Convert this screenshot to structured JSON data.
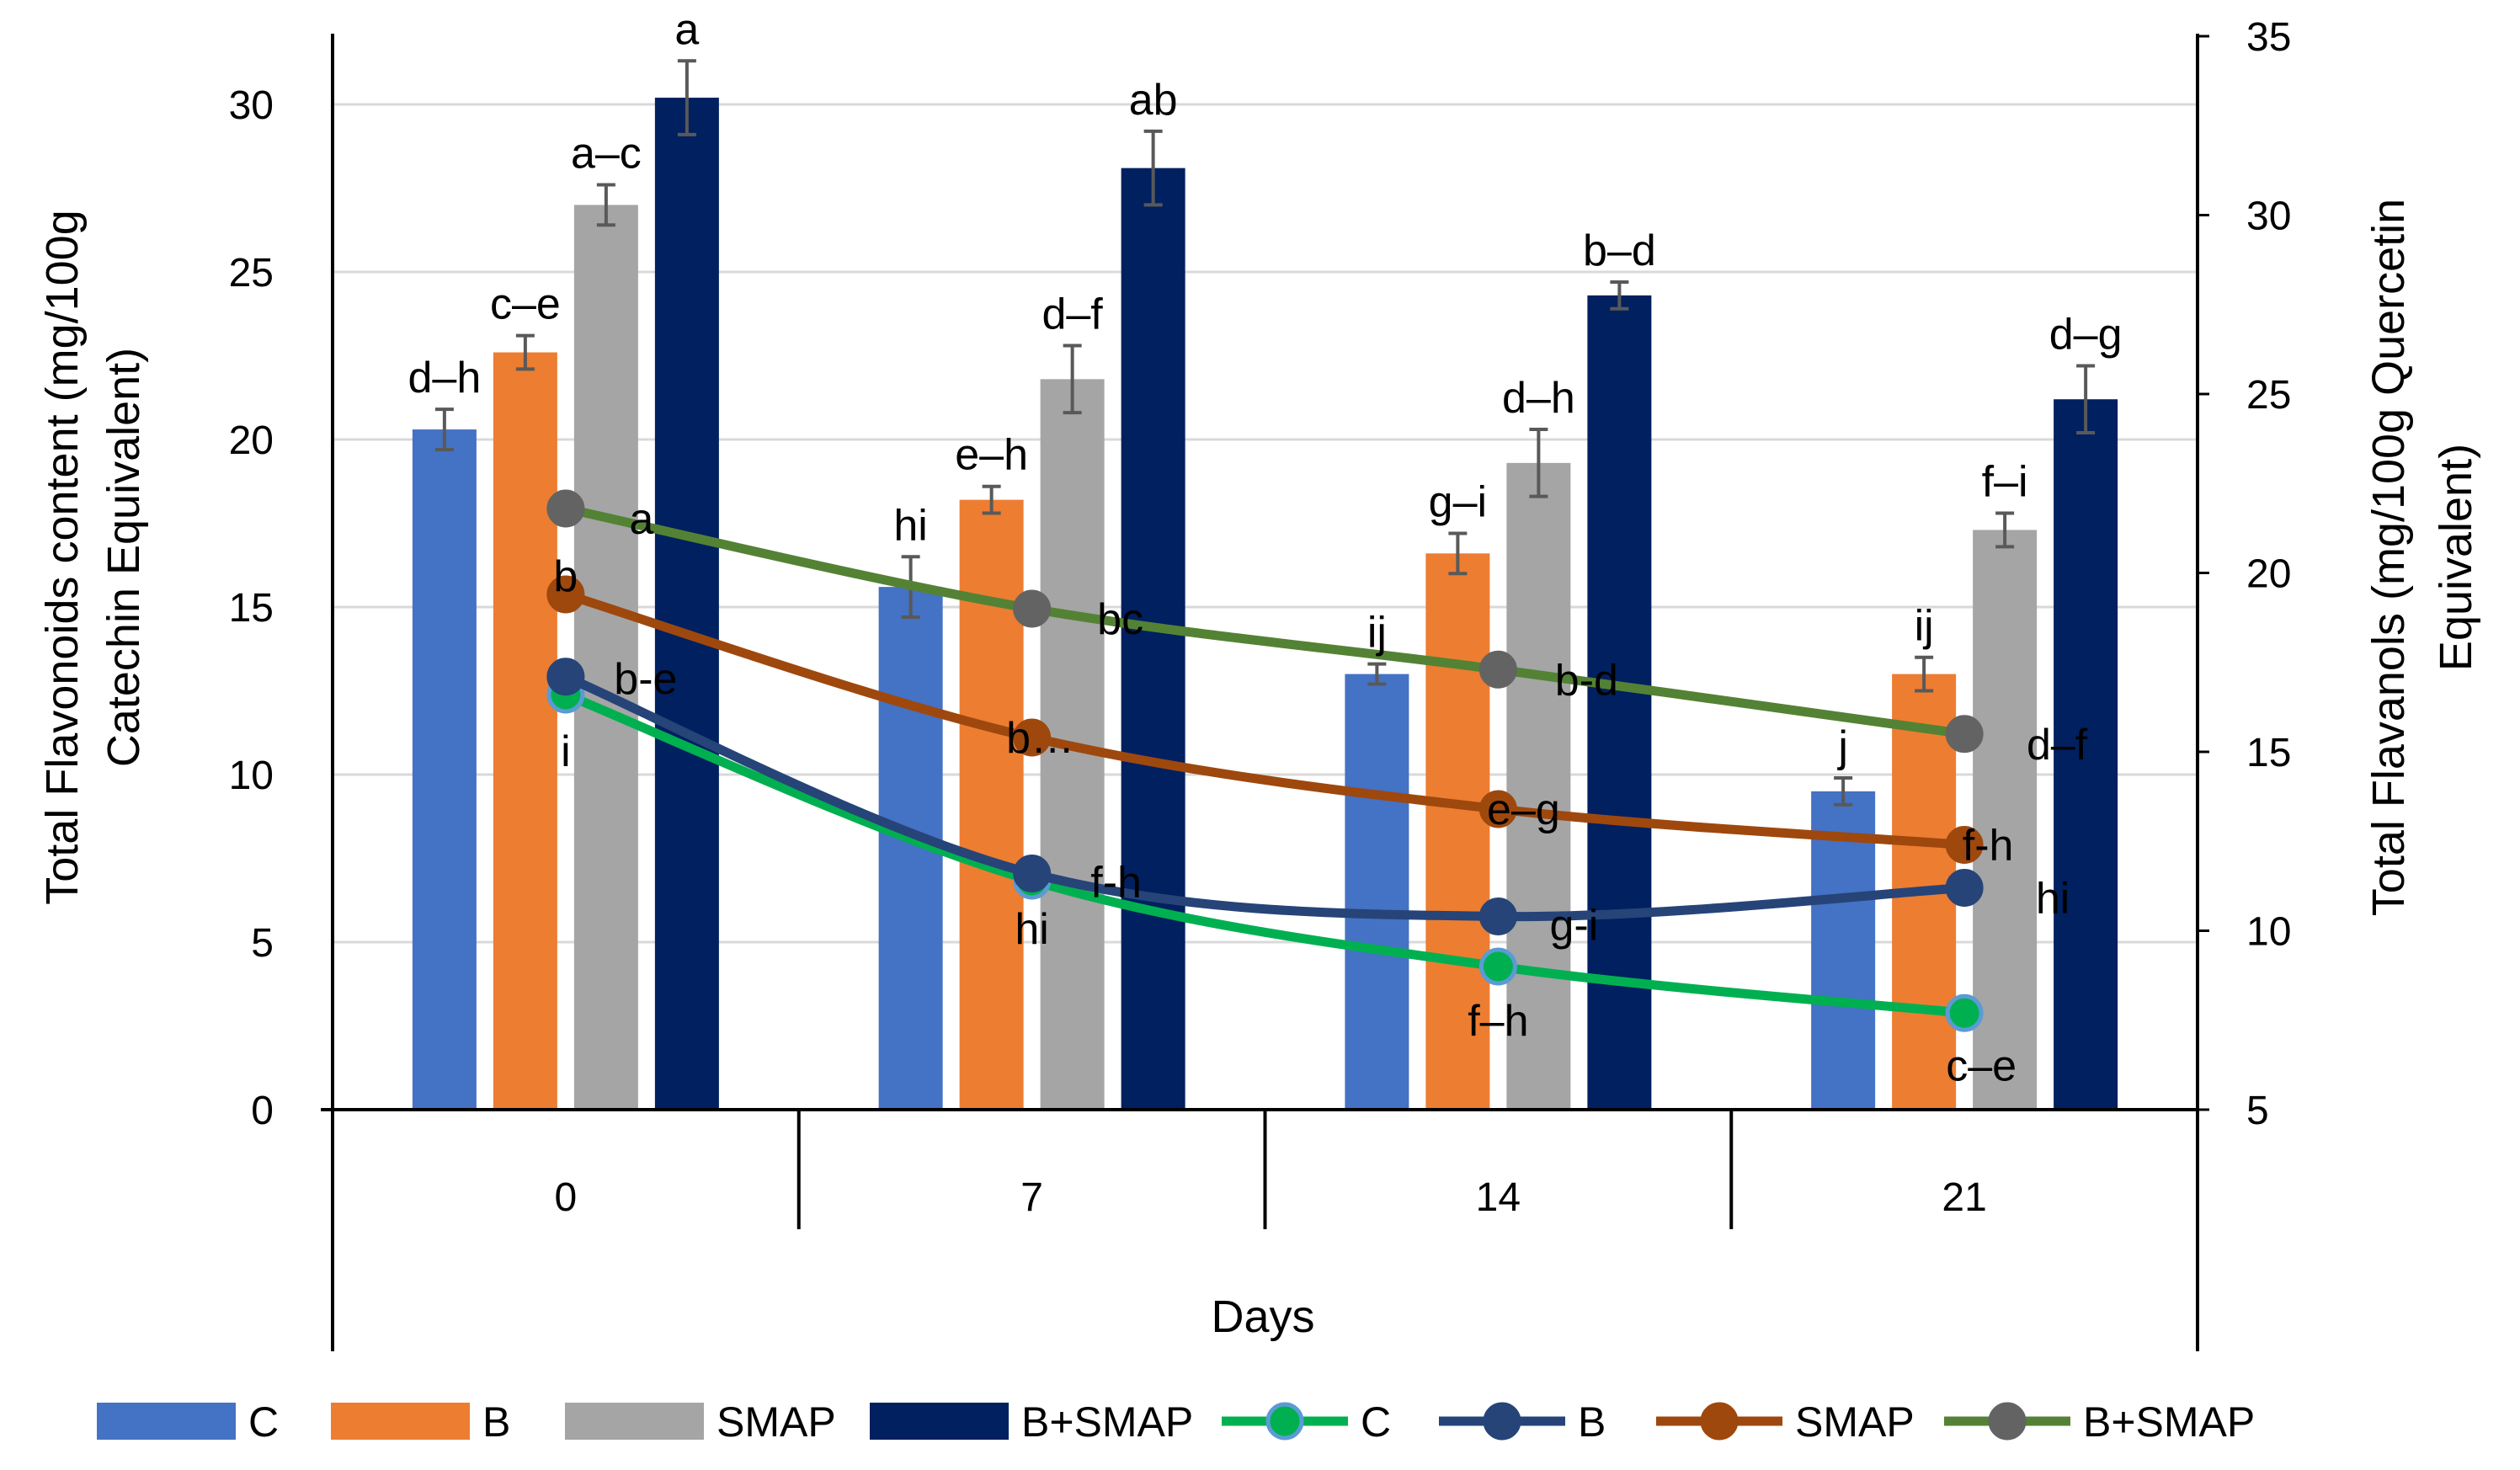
{
  "chart_data": {
    "type": "bar+line (dual axis)",
    "categories": [
      "0",
      "7",
      "14",
      "21"
    ],
    "xlabel": "Days",
    "y_left": {
      "label_lines": [
        "Total Flavonoids content (mg/100g",
        "Catechin Equivalent)"
      ],
      "range": [
        0,
        32
      ],
      "ticks": [
        "0",
        "5",
        "10",
        "15",
        "20",
        "25",
        "30"
      ]
    },
    "y_right": {
      "label_lines": [
        "Total Flavanols (mg/100g Quercetin",
        "Equivalent)"
      ],
      "range": [
        5,
        35
      ],
      "ticks": [
        "5",
        "10",
        "15",
        "20",
        "25",
        "30",
        "35"
      ]
    },
    "bar_series": [
      {
        "name": "C",
        "color": "#4472C4",
        "values": [
          20.3,
          15.6,
          13.0,
          9.5
        ],
        "errors": [
          0.6,
          0.9,
          0.3,
          0.4
        ],
        "letters": [
          "d–h",
          "hi",
          "ij",
          "j"
        ]
      },
      {
        "name": "B",
        "color": "#ED7D31",
        "values": [
          22.6,
          18.2,
          16.6,
          13.0
        ],
        "errors": [
          0.5,
          0.4,
          0.6,
          0.5
        ],
        "letters": [
          "c–e",
          "e–h",
          "g–i",
          "ij"
        ]
      },
      {
        "name": "SMAP",
        "color": "#A5A5A5",
        "values": [
          27.0,
          21.8,
          19.3,
          17.3
        ],
        "errors": [
          0.6,
          1.0,
          1.0,
          0.5
        ],
        "letters": [
          "a–c",
          "d–f",
          "d–h",
          "f–i"
        ]
      },
      {
        "name": "B+SMAP",
        "color": "#002060",
        "values": [
          30.2,
          28.1,
          24.3,
          21.2
        ],
        "errors": [
          1.1,
          1.1,
          0.4,
          1.0
        ],
        "letters": [
          "a",
          "ab",
          "b–d",
          "d–g"
        ]
      }
    ],
    "line_series": [
      {
        "name": "C",
        "color": "#00B050",
        "marker_fill": "#00B050",
        "marker_stroke": "#5B9BD5",
        "values": [
          16.6,
          11.4,
          9.0,
          7.7
        ],
        "letters": [
          "i",
          "hi",
          "f–h",
          "c–e"
        ]
      },
      {
        "name": "B",
        "color": "#264478",
        "marker_fill": "#264478",
        "marker_stroke": "#264478",
        "values": [
          17.1,
          11.6,
          10.4,
          11.2
        ],
        "letters": [
          "b-e",
          "f-h",
          "g-i",
          "hi"
        ]
      },
      {
        "name": "SMAP",
        "color": "#9E480E",
        "marker_fill": "#9E480E",
        "marker_stroke": "#9E480E",
        "values": [
          19.4,
          15.4,
          13.4,
          12.4
        ],
        "letters": [
          "b",
          "b…",
          "e–g",
          "f-h"
        ]
      },
      {
        "name": "B+SMAP",
        "color": "#548235",
        "marker_fill": "#636363",
        "marker_stroke": "#636363",
        "values": [
          21.8,
          19.0,
          17.3,
          15.5
        ],
        "letters": [
          "a",
          "bc",
          "b-d",
          "d–f"
        ]
      }
    ],
    "grid": true,
    "legend_position": "bottom"
  }
}
